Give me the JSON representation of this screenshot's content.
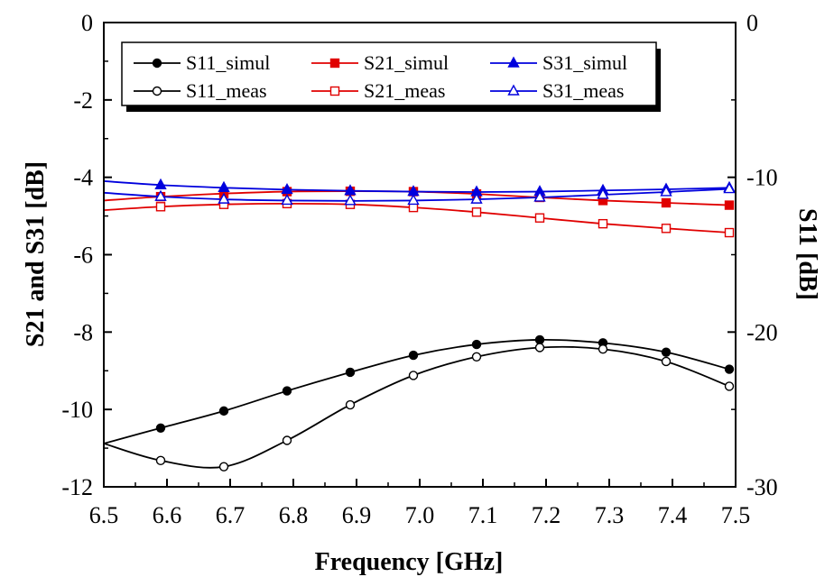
{
  "chart_data": {
    "type": "line",
    "xlabel": "Frequency [GHz]",
    "ylabel_left": "S21 and S31 [dB]",
    "ylabel_right": "S11 [dB]",
    "xlim": [
      6.5,
      7.5
    ],
    "ylim_left": [
      -12,
      0
    ],
    "ylim_right": [
      -30,
      0
    ],
    "x_ticks": [
      "6.5",
      "6.6",
      "6.7",
      "6.8",
      "6.9",
      "7.0",
      "7.1",
      "7.2",
      "7.3",
      "7.4",
      "7.5"
    ],
    "y_left_ticks": [
      "0",
      "-2",
      "-4",
      "-6",
      "-8",
      "-10",
      "-12"
    ],
    "y_right_ticks": [
      "0",
      "-10",
      "-20",
      "-30"
    ],
    "grid": false,
    "legend_position": "top",
    "series": [
      {
        "name": "S11_simul",
        "axis": "right",
        "color": "#000000",
        "marker": "filled-circle",
        "x": [
          6.5,
          6.59,
          6.69,
          6.79,
          6.89,
          6.99,
          7.09,
          7.19,
          7.29,
          7.39,
          7.49
        ],
        "y": [
          -27.2,
          -26.2,
          -25.1,
          -23.8,
          -22.6,
          -21.5,
          -20.8,
          -20.5,
          -20.7,
          -21.3,
          -22.4
        ]
      },
      {
        "name": "S11_meas",
        "axis": "right",
        "color": "#000000",
        "marker": "open-circle",
        "x": [
          6.5,
          6.59,
          6.69,
          6.79,
          6.89,
          6.99,
          7.09,
          7.19,
          7.29,
          7.39,
          7.49
        ],
        "y": [
          -27.2,
          -28.3,
          -28.7,
          -27.0,
          -24.7,
          -22.8,
          -21.6,
          -21.0,
          -21.1,
          -21.9,
          -23.5
        ]
      },
      {
        "name": "S21_simul",
        "axis": "left",
        "color": "#e00000",
        "marker": "filled-square",
        "x": [
          6.5,
          6.59,
          6.69,
          6.79,
          6.89,
          6.99,
          7.09,
          7.19,
          7.29,
          7.39,
          7.49
        ],
        "y": [
          -4.6,
          -4.5,
          -4.42,
          -4.37,
          -4.36,
          -4.37,
          -4.43,
          -4.52,
          -4.6,
          -4.66,
          -4.72
        ]
      },
      {
        "name": "S21_meas",
        "axis": "left",
        "color": "#e00000",
        "marker": "open-square",
        "x": [
          6.5,
          6.59,
          6.69,
          6.79,
          6.89,
          6.99,
          7.09,
          7.19,
          7.29,
          7.39,
          7.49
        ],
        "y": [
          -4.85,
          -4.76,
          -4.7,
          -4.68,
          -4.7,
          -4.78,
          -4.9,
          -5.05,
          -5.2,
          -5.32,
          -5.43
        ]
      },
      {
        "name": "S31_simul",
        "axis": "left",
        "color": "#0000dd",
        "marker": "filled-triangle",
        "x": [
          6.5,
          6.59,
          6.69,
          6.79,
          6.89,
          6.99,
          7.09,
          7.19,
          7.29,
          7.39,
          7.49
        ],
        "y": [
          -4.1,
          -4.2,
          -4.27,
          -4.32,
          -4.35,
          -4.37,
          -4.38,
          -4.37,
          -4.34,
          -4.31,
          -4.27
        ]
      },
      {
        "name": "S31_meas",
        "axis": "left",
        "color": "#0000dd",
        "marker": "open-triangle",
        "x": [
          6.5,
          6.59,
          6.69,
          6.79,
          6.89,
          6.99,
          7.09,
          7.19,
          7.29,
          7.39,
          7.49
        ],
        "y": [
          -4.4,
          -4.5,
          -4.57,
          -4.6,
          -4.61,
          -4.6,
          -4.57,
          -4.52,
          -4.45,
          -4.38,
          -4.3
        ]
      }
    ]
  }
}
